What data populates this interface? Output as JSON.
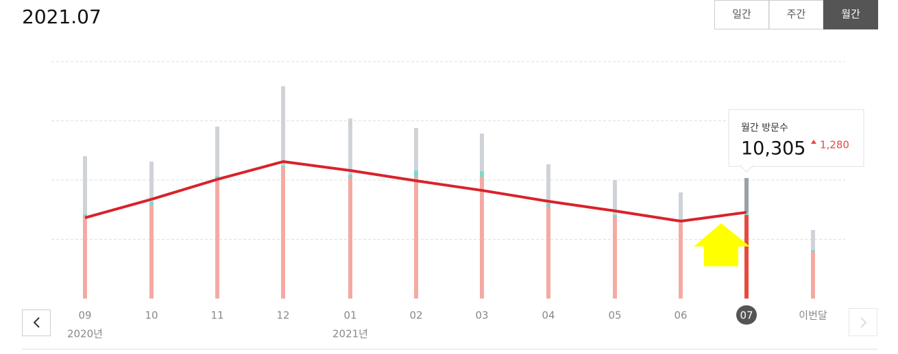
{
  "header": {
    "title": "2021.07",
    "tabs": [
      "일간",
      "주간",
      "월간"
    ],
    "active_tab": 2
  },
  "chart_data": {
    "type": "bar",
    "categories": [
      "09",
      "10",
      "11",
      "12",
      "01",
      "02",
      "03",
      "04",
      "05",
      "06",
      "07",
      "이번달"
    ],
    "x_sublabels": [
      "2020년",
      null,
      null,
      null,
      "2021년",
      null,
      null,
      null,
      null,
      null,
      null,
      null
    ],
    "highlight_index": 10,
    "stacked": true,
    "series": [
      {
        "color": "#f4aaa3",
        "highlight_color": "#e8493f",
        "values": [
          6940,
          7860,
          10060,
          11100,
          10230,
          10290,
          10290,
          7750,
          6820,
          6300,
          7050,
          3930
        ]
      },
      {
        "color": "#7fd8cc",
        "highlight_color": "#7fd8cc",
        "values": [
          170,
          290,
          290,
          120,
          230,
          520,
          460,
          290,
          230,
          60,
          230,
          170
        ]
      },
      {
        "color": "#cfd3d8",
        "highlight_color": "#98a0a8",
        "values": [
          4910,
          3410,
          4160,
          6700,
          4740,
          3580,
          3180,
          3290,
          2950,
          2600,
          2890,
          1680
        ]
      },
      {
        "type": "line",
        "color": "#d9222a",
        "values": [
          6820,
          8380,
          10060,
          11560,
          10810,
          9940,
          9130,
          8210,
          7400,
          6530,
          7280,
          null
        ]
      }
    ],
    "ylim": [
      0,
      20000
    ],
    "yticks": [
      5000,
      10000,
      15000,
      20000
    ],
    "grid": true
  },
  "tooltip": {
    "title": "월간 방문수",
    "value": "10,305",
    "change": "1,280"
  }
}
